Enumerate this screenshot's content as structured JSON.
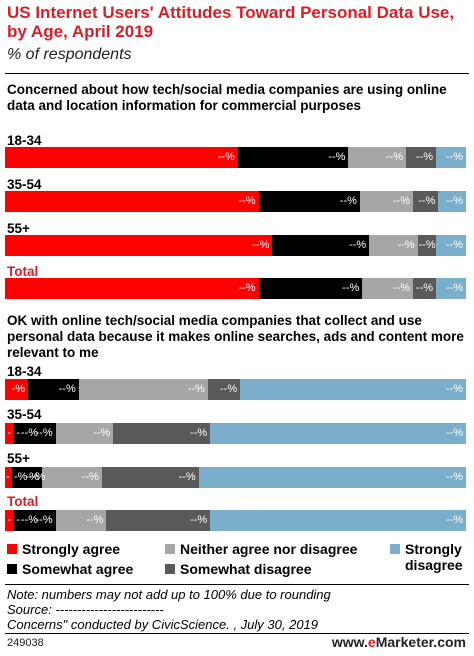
{
  "header": {
    "title": "US Internet Users' Attitudes Toward Personal Data Use, by Age, April 2019",
    "subtitle": "% of respondents"
  },
  "colors": {
    "strongly_agree": "#ff0000",
    "somewhat_agree": "#000000",
    "neither": "#a6a6a6",
    "somewhat_disagree": "#595959",
    "strongly_disagree": "#7aaecb",
    "accent": "#d81f26"
  },
  "legend": {
    "strongly_agree": "Strongly agree",
    "somewhat_agree": "Somewhat agree",
    "neither": "Neither agree nor disagree",
    "somewhat_disagree": "Somewhat disagree",
    "strongly_disagree_1": "Strongly",
    "strongly_disagree_2": "disagree"
  },
  "chart_data": [
    {
      "type": "bar",
      "stacked": true,
      "orientation": "horizontal",
      "title": "Concerned about how tech/social media companies are using online data and location information for commercial purposes",
      "categories": [
        "18-34",
        "35-54",
        "55+",
        "Total"
      ],
      "series": [
        {
          "name": "Strongly agree",
          "values": [
            50.5,
            55.0,
            58.0,
            55.0
          ],
          "labels": [
            "--%",
            "--%",
            "--%",
            "--%"
          ]
        },
        {
          "name": "Somewhat agree",
          "values": [
            24.0,
            22.0,
            21.0,
            22.5
          ],
          "labels": [
            "--%",
            "--%",
            "--%",
            "--%"
          ]
        },
        {
          "name": "Neither agree nor disagree",
          "values": [
            12.5,
            11.5,
            10.5,
            11.0
          ],
          "labels": [
            "--%",
            "--%",
            "--%",
            "--%"
          ]
        },
        {
          "name": "Somewhat disagree",
          "values": [
            6.5,
            5.5,
            4.0,
            5.0
          ],
          "labels": [
            "--%",
            "--%",
            "--%",
            "--%"
          ]
        },
        {
          "name": "Strongly disagree",
          "values": [
            6.5,
            6.0,
            6.5,
            6.5
          ],
          "labels": [
            "--%",
            "--%",
            "--%",
            "--%"
          ]
        }
      ],
      "xlim": [
        0,
        100
      ]
    },
    {
      "type": "bar",
      "stacked": true,
      "orientation": "horizontal",
      "title": "OK with online tech/social media companies that collect and use personal data because it makes online searches, ads and content more relevant to me",
      "categories": [
        "18-34",
        "35-54",
        "55+",
        "Total"
      ],
      "series": [
        {
          "name": "Strongly agree",
          "values": [
            5.0,
            2.0,
            1.5,
            2.0
          ],
          "labels": [
            "-%",
            "-",
            "-",
            "-"
          ]
        },
        {
          "name": "Somewhat agree",
          "values": [
            11.0,
            9.0,
            6.5,
            9.0
          ],
          "labels": [
            "--%",
            "--%",
            "-%",
            "--%"
          ]
        },
        {
          "name": "Neither agree nor disagree",
          "values": [
            28.0,
            12.5,
            13.0,
            11.0
          ],
          "labels": [
            "--%",
            "--%",
            "--%",
            "--%"
          ]
        },
        {
          "name": "Somewhat disagree",
          "values": [
            7.0,
            21.0,
            21.0,
            22.5
          ],
          "labels": [
            "--%",
            "--%",
            "--%",
            "--%"
          ]
        },
        {
          "name": "Strongly disagree",
          "values": [
            49.0,
            55.5,
            58.0,
            55.5
          ],
          "labels": [
            "--%",
            "--%",
            "--%",
            "--%"
          ]
        }
      ],
      "extra_labels": [
        [],
        [
          "-",
          "--%"
        ],
        [
          "-%",
          "--%"
        ],
        [
          "-",
          "--%"
        ]
      ],
      "xlim": [
        0,
        100
      ]
    }
  ],
  "footer": {
    "note1": "Note: numbers may not add up to 100% due to rounding",
    "note2": "Source: -------------------------",
    "note3": "Concerns\" conducted by CivicScience. , July 30, 2019",
    "chart_id": "249038",
    "brand_prefix": "www.",
    "brand_e": "e",
    "brand_suffix": "Marketer.com"
  }
}
